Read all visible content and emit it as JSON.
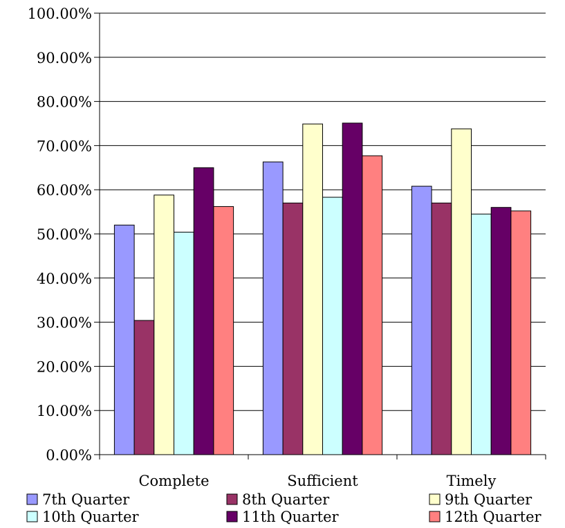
{
  "chart_data": {
    "type": "bar",
    "categories": [
      "Complete",
      "Sufficient",
      "Timely"
    ],
    "series": [
      {
        "name": "7th Quarter",
        "color": "#9999FF",
        "values": [
          0.52,
          0.663,
          0.608
        ]
      },
      {
        "name": "8th Quarter",
        "color": "#993366",
        "values": [
          0.304,
          0.57,
          0.57
        ]
      },
      {
        "name": "9th Quarter",
        "color": "#FFFFCC",
        "values": [
          0.588,
          0.749,
          0.738
        ]
      },
      {
        "name": "10th Quarter",
        "color": "#CCFFFF",
        "values": [
          0.504,
          0.583,
          0.545
        ]
      },
      {
        "name": "11th Quarter",
        "color": "#660066",
        "values": [
          0.65,
          0.751,
          0.56
        ]
      },
      {
        "name": "12th Quarter",
        "color": "#FF8080",
        "values": [
          0.562,
          0.677,
          0.552
        ]
      }
    ],
    "ylim": [
      0,
      1
    ],
    "yticks": [
      "0.00%",
      "10.00%",
      "20.00%",
      "30.00%",
      "40.00%",
      "50.00%",
      "60.00%",
      "70.00%",
      "80.00%",
      "90.00%",
      "100.00%"
    ],
    "grid": true,
    "legend_position": "bottom"
  }
}
